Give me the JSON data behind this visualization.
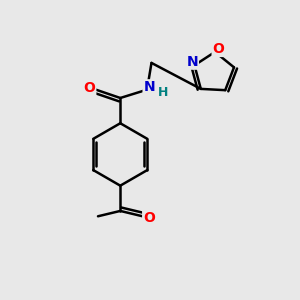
{
  "bg_color": "#e8e8e8",
  "bond_color": "#000000",
  "bond_width": 1.8,
  "atom_colors": {
    "N": "#0000cc",
    "O": "#ff0000",
    "H": "#008080"
  },
  "font_size": 10,
  "fig_size": [
    3.0,
    3.0
  ],
  "dpi": 100,
  "xlim": [
    0,
    10
  ],
  "ylim": [
    0,
    10
  ]
}
